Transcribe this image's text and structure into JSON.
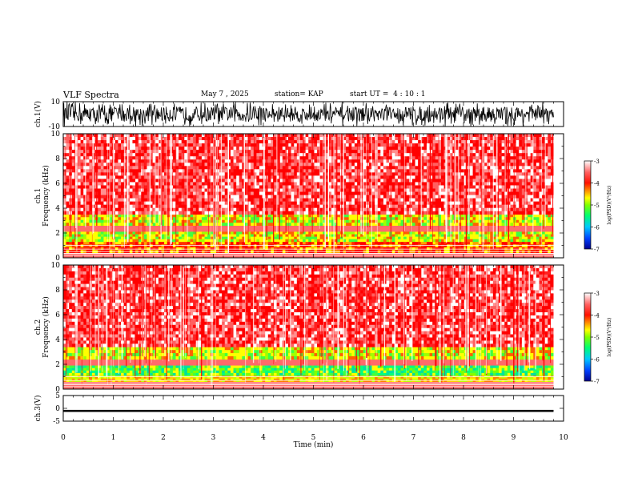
{
  "header": {
    "title": "VLF Spectra",
    "date": "May 7 , 2025",
    "station": "station= KAP",
    "start_time": "start UT =  4 : 10 : 1"
  },
  "colors": {
    "colormap": [
      "#000090",
      "#0050ff",
      "#00d0ff",
      "#00ff80",
      "#60ff00",
      "#ffff00",
      "#ffa000",
      "#ff3000",
      "#ff0000",
      "#ff8080",
      "#ffffff"
    ]
  },
  "chart_data": [
    {
      "type": "line",
      "name": "ch1-waveform",
      "ylabel": "ch.1(V)",
      "ylim": [
        -10,
        10
      ],
      "yticks": [
        "10",
        "-10"
      ],
      "xlim": [
        0,
        10
      ],
      "note_values": "dense noisy waveform, amplitude about -10 to 10 V across the record"
    },
    {
      "type": "heatmap",
      "name": "ch1-spectrogram",
      "ylabel": "ch.1\nFrequency (kHz)",
      "ylim": [
        0,
        10
      ],
      "yticks": [
        "0",
        "2",
        "4",
        "6",
        "8",
        "10"
      ],
      "xlim": [
        0,
        10
      ],
      "record_end_min": 9.8,
      "colorbar": {
        "label": "log(PSD)(V²/Hz)",
        "range": [
          -7,
          -3
        ],
        "ticks": [
          "-3",
          "-4",
          "-5",
          "-6",
          "-7"
        ]
      },
      "bands": [
        {
          "from_khz": 0.4,
          "to_khz": 1.3,
          "level": "red-yellow"
        },
        {
          "from_khz": 1.3,
          "to_khz": 2.1,
          "level": "yellow-green"
        },
        {
          "from_khz": 2.6,
          "to_khz": 3.5,
          "level": "yellow-green"
        },
        {
          "from_khz": 3.5,
          "to_khz": 10,
          "level": "red-white"
        }
      ]
    },
    {
      "type": "heatmap",
      "name": "ch2-spectrogram",
      "ylabel": "ch.2\nFrequency (kHz)",
      "ylim": [
        0,
        10
      ],
      "yticks": [
        "0",
        "2",
        "4",
        "6",
        "8",
        "10"
      ],
      "xlim": [
        0,
        10
      ],
      "record_end_min": 9.8,
      "colorbar": {
        "label": "log(PSD)(V²/Hz)",
        "range": [
          -7,
          -3
        ],
        "ticks": [
          "-3",
          "-4",
          "-5",
          "-6",
          "-7"
        ]
      },
      "bands": [
        {
          "from_khz": 0.6,
          "to_khz": 1.1,
          "level": "yellow"
        },
        {
          "from_khz": 1.1,
          "to_khz": 1.9,
          "level": "green"
        },
        {
          "from_khz": 2.4,
          "to_khz": 3.4,
          "level": "yellow-green"
        },
        {
          "from_khz": 3.4,
          "to_khz": 10,
          "level": "red-white"
        }
      ]
    },
    {
      "type": "line",
      "name": "ch3-waveform",
      "ylabel": "ch.3(V)",
      "ylim": [
        -5,
        5
      ],
      "yticks": [
        "5",
        "0",
        "-5"
      ],
      "xlim": [
        0,
        10
      ],
      "xlabel": "Time (min)",
      "xticks": [
        "0",
        "1",
        "2",
        "3",
        "4",
        "5",
        "6",
        "7",
        "8",
        "9",
        "10"
      ],
      "note_values": "narrow noisy band around -1 V"
    }
  ]
}
